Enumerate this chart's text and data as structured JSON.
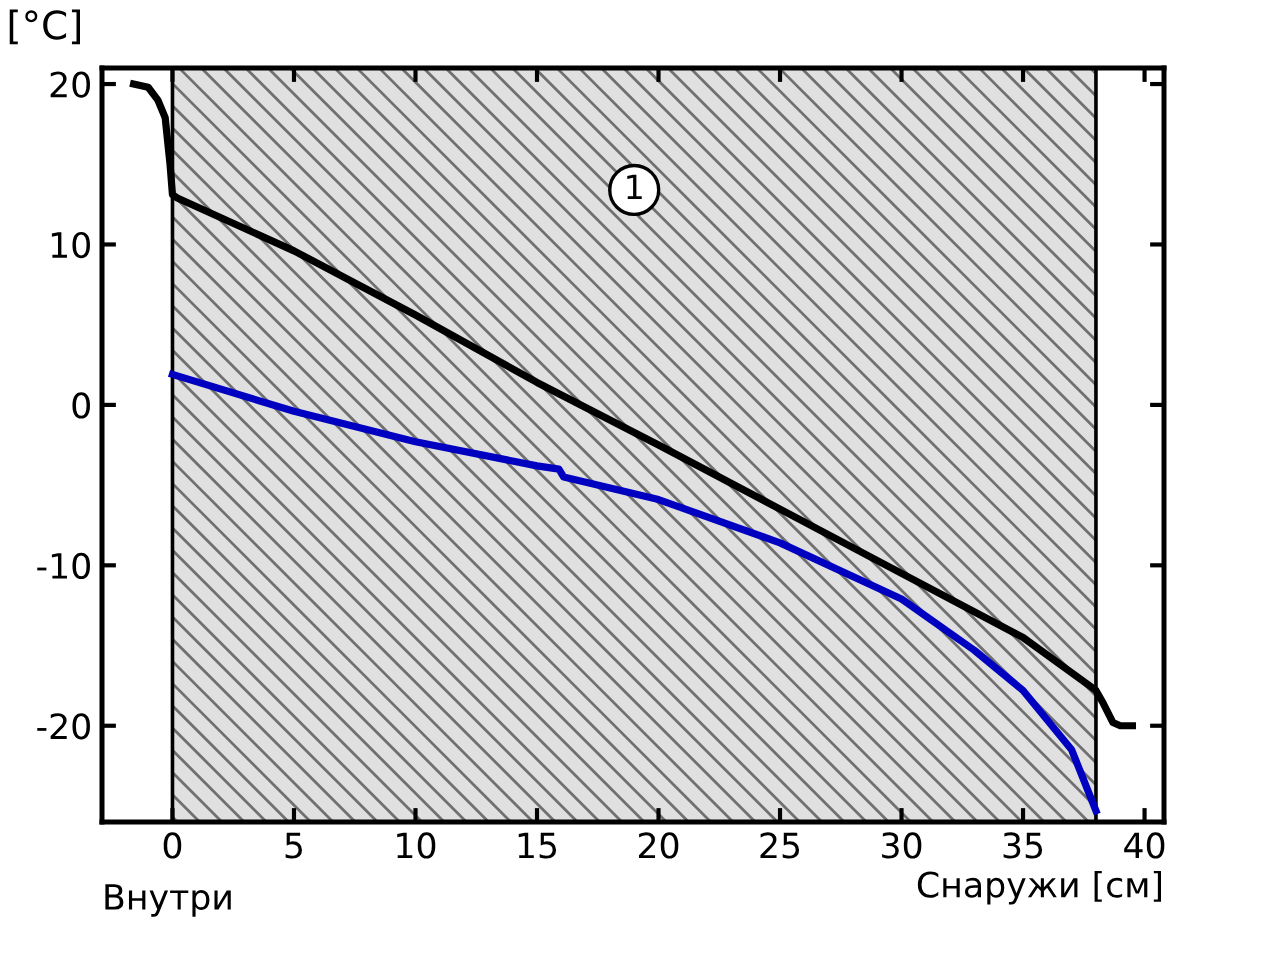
{
  "chart_data": {
    "type": "line",
    "ylabel": "[°C]",
    "xlabel": "Снаружи [см]",
    "annotations": [
      "Внутри",
      {
        "text": "1",
        "x": 19,
        "y": 13.4
      }
    ],
    "xlim": [
      -2.9,
      40.8
    ],
    "ylim": [
      -26,
      21
    ],
    "xticks": [
      0,
      5,
      10,
      15,
      20,
      25,
      30,
      35,
      40
    ],
    "yticks": [
      -20,
      -10,
      0,
      10,
      20
    ],
    "grid": false,
    "legend": false,
    "marker": "none",
    "line_style": "solid",
    "bands": [
      {
        "axis": "x",
        "from": 0,
        "to": 38,
        "color": "#e0e0e0"
      }
    ],
    "series": [
      {
        "color": "#000000",
        "x": [
          -1.6,
          -1.0,
          -0.6,
          -0.3,
          -0.1,
          0,
          0.2,
          5,
          10,
          15,
          20,
          25,
          30,
          35,
          38,
          38.3,
          38.7,
          39,
          39.5
        ],
        "values": [
          20,
          19.8,
          19,
          17.9,
          15,
          13.1,
          12.9,
          9.6,
          5.6,
          1.4,
          -2.5,
          -6.5,
          -10.5,
          -14.5,
          -17.8,
          -18.6,
          -19.8,
          -20,
          -20
        ]
      },
      {
        "color": "#0000c0",
        "x": [
          0,
          5,
          10,
          15,
          15.9,
          16.1,
          20,
          25,
          30,
          33,
          35,
          37,
          38
        ],
        "values": [
          1.9,
          -0.4,
          -2.3,
          -3.8,
          -4.0,
          -4.5,
          -5.9,
          -8.6,
          -12.1,
          -15.3,
          -17.8,
          -21.5,
          -25.3
        ]
      }
    ]
  }
}
